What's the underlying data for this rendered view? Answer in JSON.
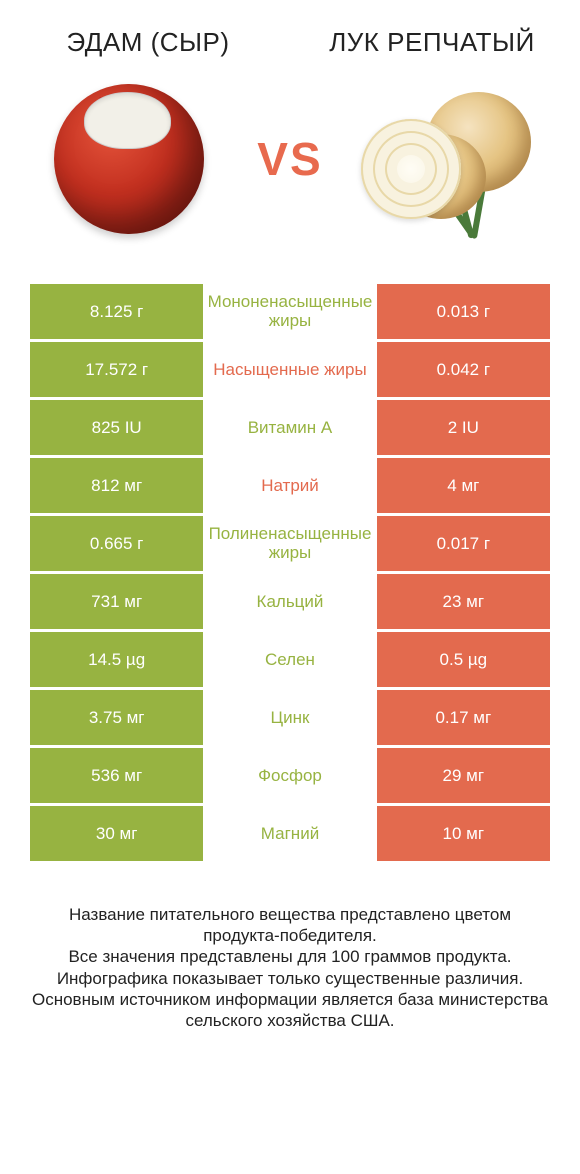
{
  "colors": {
    "green": "#97b341",
    "orange": "#e36a4e",
    "text": "#222222",
    "white": "#ffffff"
  },
  "header": {
    "left": "ЭДАМ (СЫР)",
    "right": "ЛУК РЕПЧАТЫЙ",
    "vs": "VS"
  },
  "rows": [
    {
      "left": "8.125 г",
      "mid": "Мононенасыщенные жиры",
      "right": "0.013 г",
      "winner": "left"
    },
    {
      "left": "17.572 г",
      "mid": "Насыщенные жиры",
      "right": "0.042 г",
      "winner": "right"
    },
    {
      "left": "825 IU",
      "mid": "Витамин A",
      "right": "2 IU",
      "winner": "left"
    },
    {
      "left": "812 мг",
      "mid": "Натрий",
      "right": "4 мг",
      "winner": "right"
    },
    {
      "left": "0.665 г",
      "mid": "Полиненасыщенные жиры",
      "right": "0.017 г",
      "winner": "left"
    },
    {
      "left": "731 мг",
      "mid": "Кальций",
      "right": "23 мг",
      "winner": "left"
    },
    {
      "left": "14.5 µg",
      "mid": "Селен",
      "right": "0.5 µg",
      "winner": "left"
    },
    {
      "left": "3.75 мг",
      "mid": "Цинк",
      "right": "0.17 мг",
      "winner": "left"
    },
    {
      "left": "536 мг",
      "mid": "Фосфор",
      "right": "29 мг",
      "winner": "left"
    },
    {
      "left": "30 мг",
      "mid": "Магний",
      "right": "10 мг",
      "winner": "left"
    }
  ],
  "footer": {
    "l1": "Название питательного вещества представлено цветом продукта-победителя.",
    "l2": "Все значения представлены для 100 граммов продукта.",
    "l3": "Инфографика показывает только существенные различия.",
    "l4": "Основным источником информации является база министерства сельского хозяйства США."
  }
}
